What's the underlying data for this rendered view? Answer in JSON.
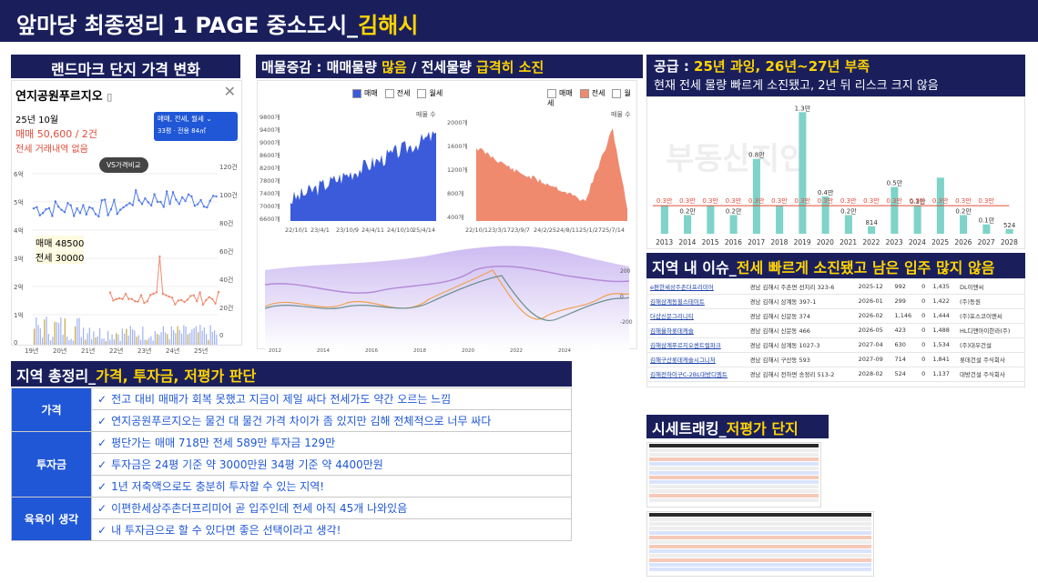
{
  "header": {
    "title_prefix": "앞마당 최종정리 1 PAGE 중소도시_",
    "title_city": "김해시"
  },
  "landmark": {
    "header": "랜드마크 단지 가격 변화",
    "complex_name": "연지공원푸르지오",
    "period": "25년 10월",
    "trade_line": "매매 50,600 / 2건",
    "rent_line": "전세 거래내역 없음",
    "filter_label": "매매, 전세, 월세",
    "filter_sub": "33평 · 전용 84㎡",
    "compare_label": "VS가격비교",
    "trade_price_label": "매매 48500",
    "rent_price_label": "전세 30000",
    "left_ticks": [
      "6억",
      "5억",
      "4억",
      "3억",
      "2억",
      "1억",
      "0"
    ],
    "right_ticks": [
      "120건",
      "100건",
      "80건",
      "60건",
      "40건",
      "20건",
      "0"
    ],
    "x_ticks": [
      "19년",
      "20년",
      "21년",
      "22년",
      "23년",
      "24년",
      "25년"
    ]
  },
  "supply_demand": {
    "header_prefix": "매물증감 : 매매물량 ",
    "header_hl1": "많음",
    "header_mid": " / 전세물량 ",
    "header_hl2": "급격히 소진",
    "legend": [
      "매매",
      "전세",
      "월세"
    ],
    "trade_axis_title": "매물 수",
    "trade_y_ticks": [
      "9800개",
      "9600개",
      "9400개",
      "9200개",
      "9000개",
      "8800개",
      "8600개",
      "8400개",
      "8200개",
      "8000개",
      "7800개",
      "7600개",
      "7400개",
      "7200개",
      "7000개",
      "6800개",
      "6600개"
    ],
    "trade_x_ticks": [
      "22/10/1",
      "23/4/1",
      "23/10/9",
      "24/4/11",
      "24/10/10",
      "25/4/14"
    ],
    "rent_axis_title": "매물 수",
    "rent_y_ticks": [
      "2000개",
      "1600개",
      "1200개",
      "800개",
      "400개"
    ],
    "rent_x_ticks": [
      "22/10/1",
      "23/3/17",
      "23/9/7",
      "24/2/25",
      "24/8/11",
      "25/1/27",
      "25/7/14"
    ],
    "lower_x_ticks": [
      "2012",
      "2014",
      "2016",
      "2018",
      "2020",
      "2022",
      "2024"
    ],
    "lower_right_ticks": [
      "200",
      "0",
      "-200"
    ]
  },
  "supply": {
    "header_prefix": "공급 : ",
    "header_hl": "25년 과잉, 26년~27년 부족",
    "subtitle": "현재 전세 물량 빠르게 소진됐고, 2년 뒤 리스크 크지 않음",
    "watermark": "부동산지인"
  },
  "chart_data": {
    "type": "bar",
    "categories": [
      "2013",
      "2014",
      "2015",
      "2016",
      "2017",
      "2018",
      "2019",
      "2020",
      "2021",
      "2022",
      "2023",
      "2024",
      "2025",
      "2026",
      "2027",
      "2028"
    ],
    "series": [
      {
        "values": [
          0.3,
          0.2,
          0.3,
          0.2,
          0.8,
          0.3,
          1.3,
          0.4,
          0.2,
          0.08,
          0.5,
          0.3,
          0.6,
          0.2,
          0.1,
          0.05
        ]
      }
    ],
    "data_labels": [
      "",
      "0.2만",
      "",
      "0.2만",
      "0.8만",
      "",
      "1.3만",
      "0.4만",
      "0.2만",
      "814",
      "0.5만",
      "0.3만",
      "",
      "0.2만",
      "0.1만",
      "524"
    ],
    "demand_labels": [
      "0.3만",
      "0.3만",
      "0.3만",
      "0.3만",
      "0.3만",
      "0.3만",
      "0.3만",
      "0.3만",
      "0.3만",
      "0.3만",
      "0.3만",
      "0.3만",
      "0.3만",
      "0.3만",
      "0.3만"
    ],
    "demand_line": 0.3,
    "ylim": [
      0,
      1.4
    ]
  },
  "issues": {
    "header_prefix": "지역 내 이슈_",
    "header_hl": "전세 빠르게 소진됐고 남은 입주 많지 않음",
    "rows": [
      [
        "e편한세상주촌더프리미어",
        "경남 김해시 주촌면 선지리 323-6",
        "2025-12",
        "992",
        "0",
        "1,435",
        "DL이앤씨"
      ],
      [
        "김해삼계동힐스테이트",
        "경남 김해시 삼계동 397-1",
        "2026-01",
        "299",
        "0",
        "1,422",
        "(주)동원"
      ],
      [
        "더샵신문그리니티",
        "경남 김해시 신문동 374",
        "2026-02",
        "1,146",
        "0",
        "1,444",
        "(주)포스코이앤씨"
      ],
      [
        "김해율하롯데캐슬",
        "경남 김해시 신문동 466",
        "2026-05",
        "423",
        "0",
        "1,488",
        "HL디앤아이한라(주)"
      ],
      [
        "김해삼계푸르지오센트럴파크",
        "경남 김해시 삼계동 1027-3",
        "2027-04",
        "630",
        "0",
        "1,534",
        "(주)대우건설"
      ],
      [
        "김해구산롯데캐슬시그니처",
        "경남 김해시 구산동 593",
        "2027-09",
        "714",
        "0",
        "1,841",
        "롯데건설 주식회사"
      ],
      [
        "김해전하이구C-2BL대방디엠트",
        "경남 김해시 전하면 송정리 513-2",
        "2028-02",
        "524",
        "0",
        "1,137",
        "대방건설 주식회사"
      ]
    ]
  },
  "tracking": {
    "header_prefix": "시세트래킹_",
    "header_hl": "저평가 단지"
  },
  "summary": {
    "header_prefix": "지역 총정리_",
    "header_hl": "가격, 투자금, 저평가 판단",
    "sections": [
      {
        "label": "가격",
        "lines": [
          "전고 대비 매매가 회복 못했고 지금이 제일 싸다 전세가도 약간 오르는 느낌",
          "연지공원푸르지오는 물건 대 물건 가격 차이가 좀 있지만 김해 전체적으로 너무 싸다"
        ]
      },
      {
        "label": "투자금",
        "lines": [
          "평단가는 매매 718만 전세 589만 투자금 129만",
          "투자금은 24평 기준 약 3000만원 34평 기준 약 4400만원",
          "1년 저축액으로도 충분히 투자할 수 있는 지역!"
        ]
      },
      {
        "label": "육육이 생각",
        "lines": [
          "이편한세상주촌더프리미어 곧 입주인데 전세 아직 45개 나와있음",
          "내 투자금으로 할 수 있다면 좋은 선택이라고 생각!"
        ]
      }
    ]
  },
  "colors": {
    "navy": "#1a1f5c",
    "yellow": "#ffd400",
    "blue": "#1f57d6",
    "teal": "#7fd3c9",
    "salmon": "#f08a6e",
    "red": "#e04b3a"
  }
}
